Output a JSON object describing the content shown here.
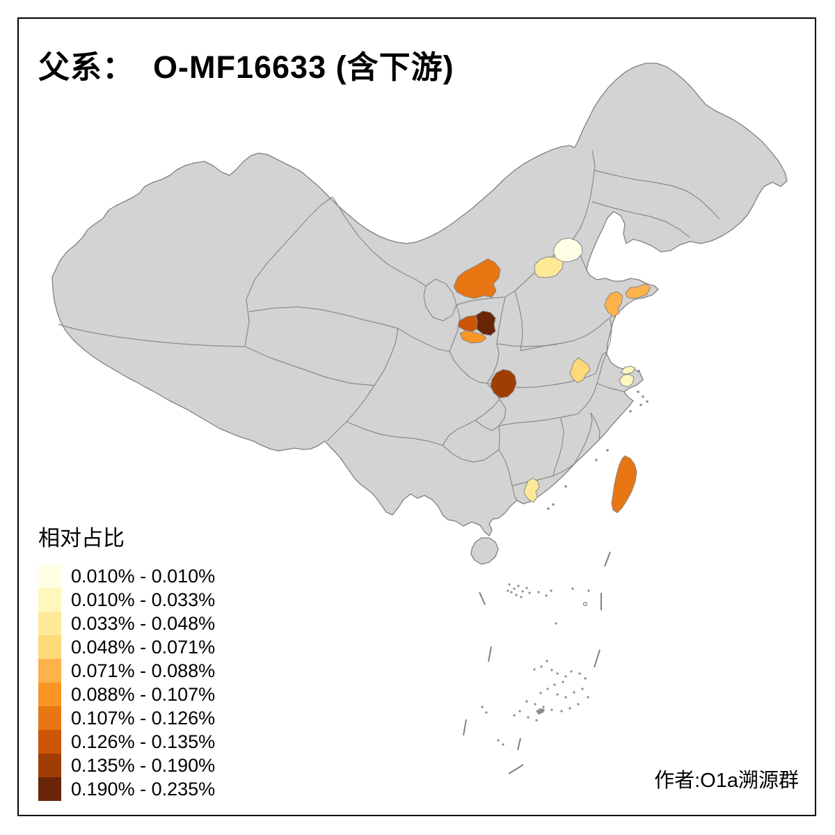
{
  "title": "父系：  O-MF16633 (含下游)",
  "attribution": "作者:O1a溯源群",
  "legend": {
    "title": "相对占比",
    "classes": [
      {
        "label": "0.010% - 0.010%",
        "color": "#FFFFE5"
      },
      {
        "label": "0.010% - 0.033%",
        "color": "#FFF7BD"
      },
      {
        "label": "0.033% - 0.048%",
        "color": "#FEE998"
      },
      {
        "label": "0.048% - 0.071%",
        "color": "#FED978"
      },
      {
        "label": "0.071% - 0.088%",
        "color": "#FDB24C"
      },
      {
        "label": "0.088% - 0.107%",
        "color": "#F99626"
      },
      {
        "label": "0.107% - 0.126%",
        "color": "#E87613"
      },
      {
        "label": "0.126% - 0.135%",
        "color": "#CC5406"
      },
      {
        "label": "0.135% - 0.190%",
        "color": "#9E3D04"
      },
      {
        "label": "0.190% - 0.235%",
        "color": "#6A2406"
      }
    ]
  },
  "map": {
    "base_land_color": "#d3d3d3",
    "border_color": "#8a8a8a",
    "patches": {
      "p1-beijing-area": 1,
      "p2-northwest-of-beijing": 3,
      "p3-ordos-area": 7,
      "p4-north-shaanxi-dark": 10,
      "p5-north-shaanxi-west": 8,
      "p6-north-shaanxi-south": 6,
      "p7-shandong-south": 5,
      "p8-shandong-peninsula": 5,
      "p9-anhui-area": 4,
      "p10-jiangsu-sliver": 2,
      "p11-shanghai-area": 2,
      "p12-daba-dark-red": 9,
      "p13-west-guangdong": 3,
      "p14-taiwan": 7
    }
  }
}
